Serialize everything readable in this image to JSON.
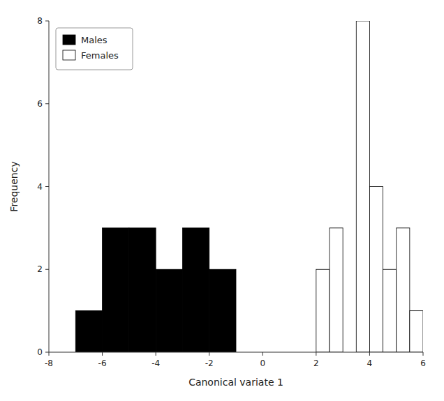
{
  "chart_data": {
    "type": "histogram",
    "xlabel": "Canonical variate 1",
    "ylabel": "Frequency",
    "xlim": [
      -8,
      6
    ],
    "ylim": [
      0,
      8
    ],
    "xticks": [
      -8,
      -6,
      -4,
      -2,
      0,
      2,
      4,
      6
    ],
    "yticks": [
      0,
      2,
      4,
      6,
      8
    ],
    "grid": false,
    "legend": "upper left",
    "series": [
      {
        "name": "Males",
        "color": "#000000",
        "bins": [
          -7,
          -6,
          -5,
          -4,
          -3,
          -2,
          -1
        ],
        "values": [
          1,
          3,
          3,
          2,
          3,
          2
        ]
      },
      {
        "name": "Females",
        "color": "#ffffff",
        "bins": [
          2.0,
          2.5,
          3.0,
          3.5,
          4.0,
          4.5,
          5.0,
          5.5,
          6.0
        ],
        "values": [
          2,
          3,
          0,
          8,
          4,
          2,
          3,
          1
        ]
      }
    ]
  }
}
